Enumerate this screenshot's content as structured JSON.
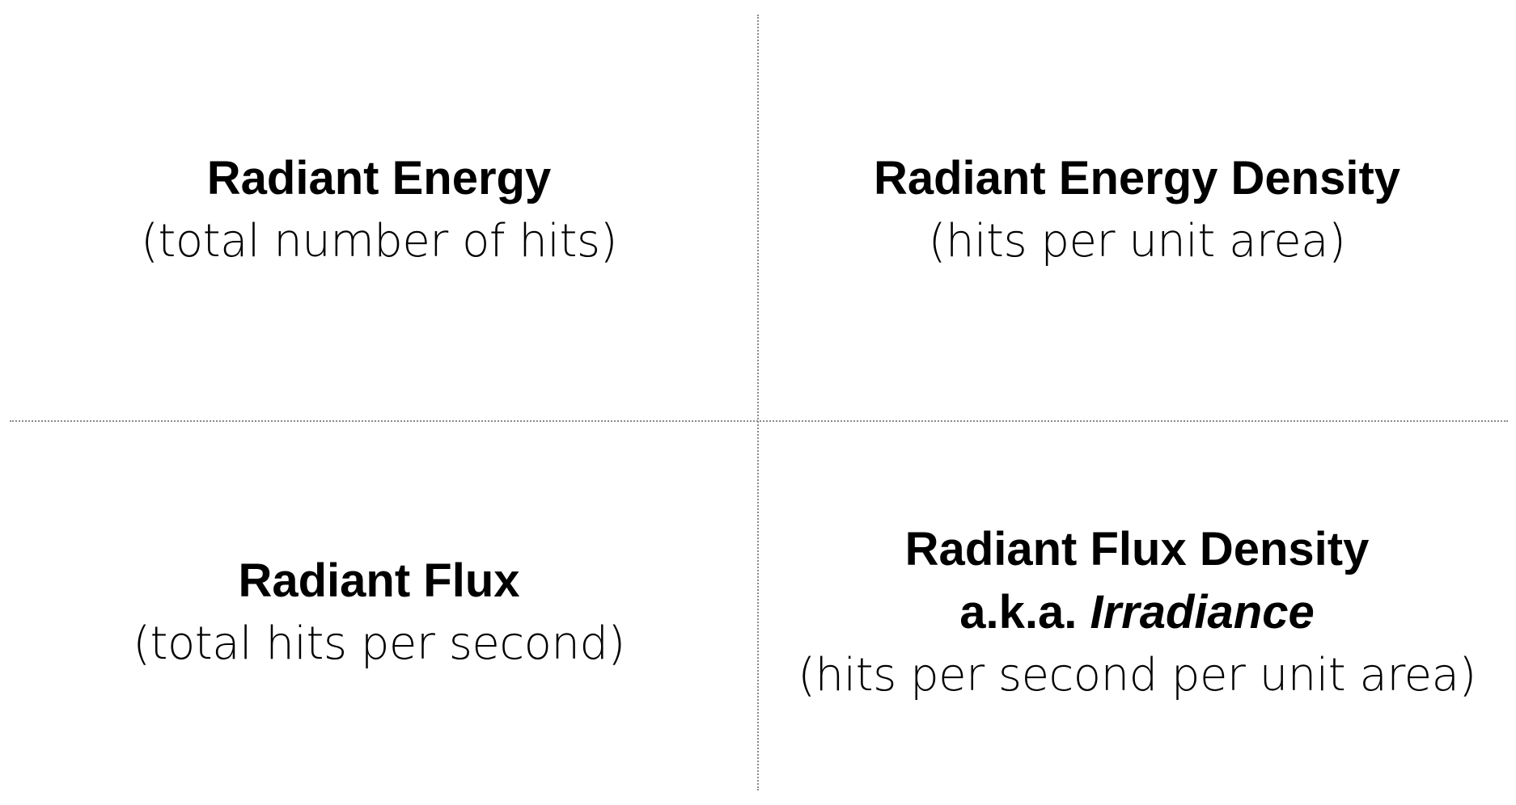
{
  "quadrants": {
    "top_left": {
      "title": "Radiant Energy",
      "subtitle": "(total number of hits)"
    },
    "top_right": {
      "title": "Radiant Energy Density",
      "subtitle": "(hits per unit area)"
    },
    "bottom_left": {
      "title": "Radiant Flux",
      "subtitle": "(total hits per second)"
    },
    "bottom_right": {
      "title": "Radiant Flux Density",
      "aka_prefix": "a.k.a.",
      "aka_term": "Irradiance",
      "subtitle": "(hits per second per unit area)"
    }
  },
  "colors": {
    "text": "#000000",
    "divider": "#8a8a8a",
    "background": "#ffffff"
  }
}
